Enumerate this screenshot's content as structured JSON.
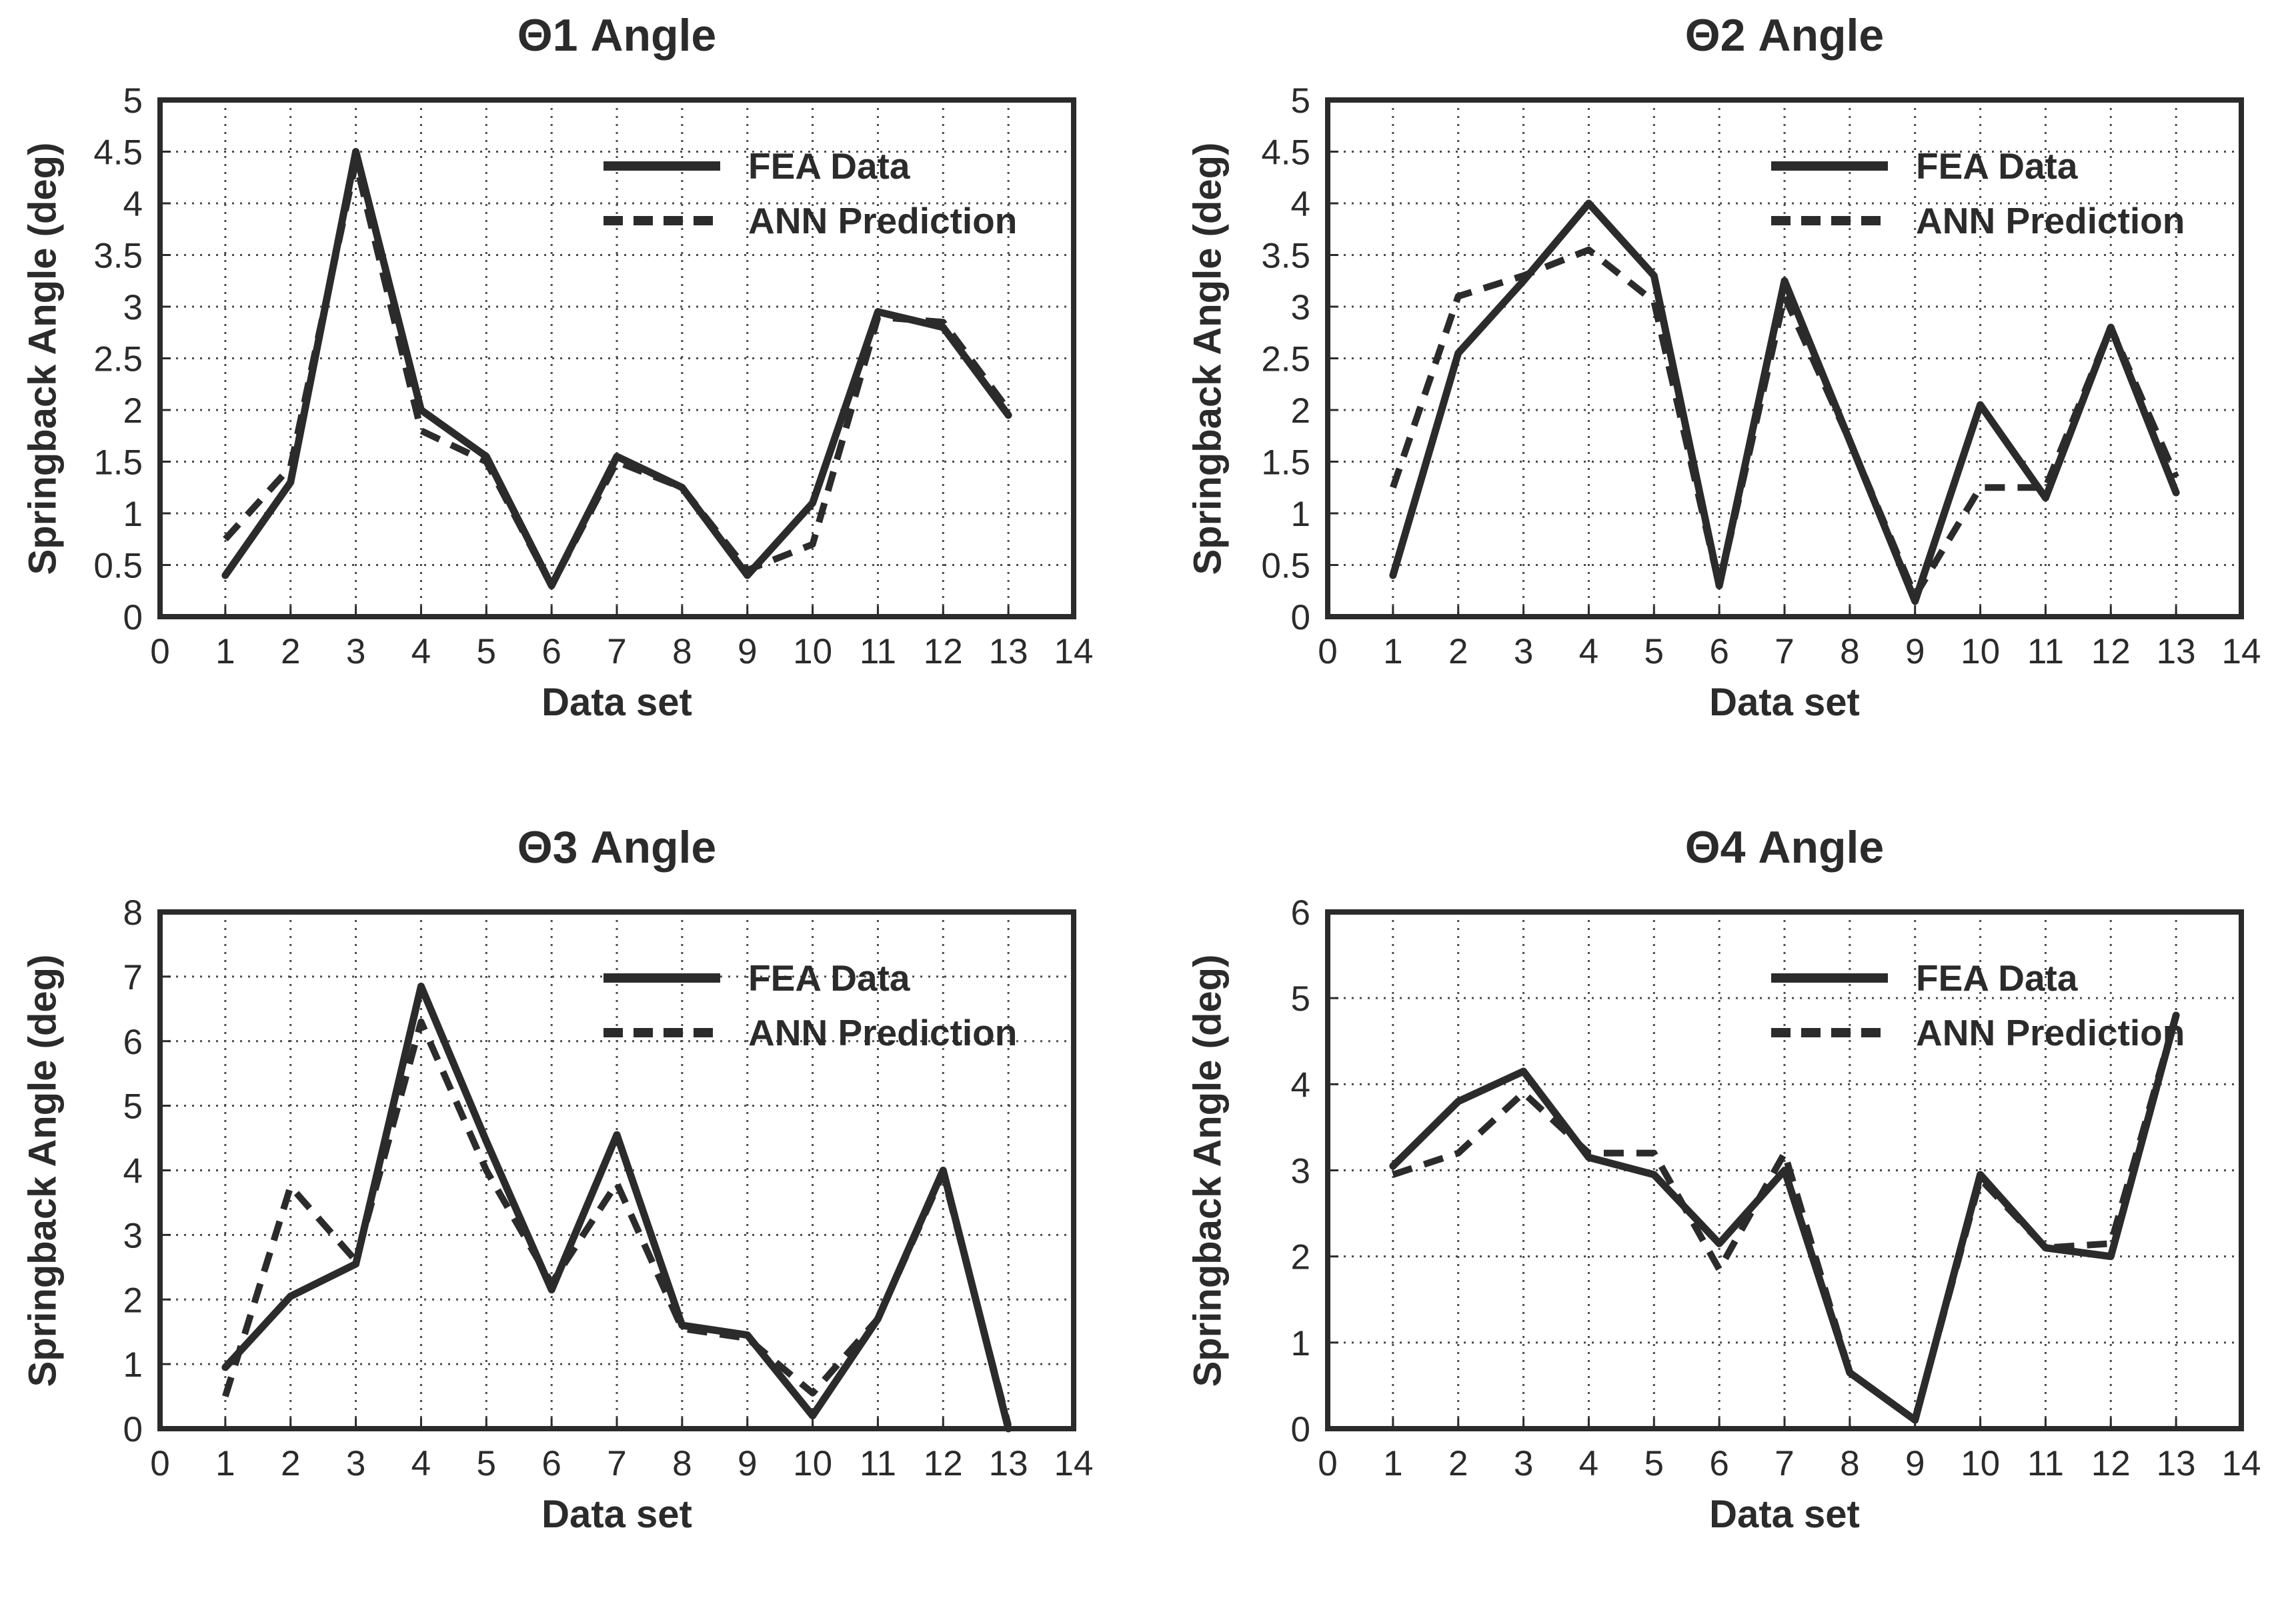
{
  "figure": {
    "type": "line-chart-grid",
    "rows": 2,
    "cols": 2
  },
  "colors": {
    "line": "#2b2b2b",
    "grid": "#4a4a4a",
    "text": "#2b2b2b",
    "background": "#ffffff"
  },
  "chart_data": [
    {
      "type": "line",
      "title": "Θ1 Angle",
      "xlabel": "Data set",
      "ylabel": "Springback Angle (deg)",
      "xlim": [
        0,
        14
      ],
      "ylim": [
        0,
        5
      ],
      "grid": true,
      "legend_position": "upper right",
      "x_ticks": [
        0,
        1,
        2,
        3,
        4,
        5,
        6,
        7,
        8,
        9,
        10,
        11,
        12,
        13,
        14
      ],
      "x_tick_labels": [
        "0",
        "1",
        "2",
        "3",
        "4",
        "5",
        "6",
        "7",
        "8",
        "9",
        "10",
        "11",
        "12",
        "13",
        "14"
      ],
      "y_ticks": [
        0,
        0.5,
        1,
        1.5,
        2,
        2.5,
        3,
        3.5,
        4,
        4.5,
        5
      ],
      "y_tick_labels": [
        "0",
        "0.5",
        "1",
        "1.5",
        "2",
        "2.5",
        "3",
        "3.5",
        "4",
        "4.5",
        "5"
      ],
      "x": [
        1,
        2,
        3,
        4,
        5,
        6,
        7,
        8,
        9,
        10,
        11,
        12,
        13
      ],
      "series": [
        {
          "name": "FEA Data",
          "line_style": "solid",
          "values": [
            0.4,
            1.3,
            4.5,
            2.0,
            1.55,
            0.3,
            1.55,
            1.25,
            0.4,
            1.1,
            2.95,
            2.8,
            1.95
          ]
        },
        {
          "name": "ANN Prediction",
          "line_style": "dashed",
          "values": [
            0.75,
            1.45,
            4.4,
            1.8,
            1.5,
            0.3,
            1.5,
            1.25,
            0.45,
            0.7,
            2.9,
            2.85,
            2.0
          ]
        }
      ]
    },
    {
      "type": "line",
      "title": "Θ2 Angle",
      "xlabel": "Data set",
      "ylabel": "Springback Angle (deg)",
      "xlim": [
        0,
        14
      ],
      "ylim": [
        0,
        5
      ],
      "grid": true,
      "legend_position": "upper right",
      "x_ticks": [
        0,
        1,
        2,
        3,
        4,
        5,
        6,
        7,
        8,
        9,
        10,
        11,
        12,
        13,
        14
      ],
      "x_tick_labels": [
        "0",
        "1",
        "2",
        "3",
        "4",
        "5",
        "6",
        "7",
        "8",
        "9",
        "10",
        "11",
        "12",
        "13",
        "14"
      ],
      "y_ticks": [
        0,
        0.5,
        1,
        1.5,
        2,
        2.5,
        3,
        3.5,
        4,
        4.5,
        5
      ],
      "y_tick_labels": [
        "0",
        "0.5",
        "1",
        "1.5",
        "2",
        "2.5",
        "3",
        "3.5",
        "4",
        "4.5",
        "5"
      ],
      "x": [
        1,
        2,
        3,
        4,
        5,
        6,
        7,
        8,
        9,
        10,
        11,
        12,
        13
      ],
      "series": [
        {
          "name": "FEA Data",
          "line_style": "solid",
          "values": [
            0.4,
            2.55,
            3.25,
            4.0,
            3.3,
            0.3,
            3.25,
            1.7,
            0.15,
            2.05,
            1.15,
            2.8,
            1.2
          ]
        },
        {
          "name": "ANN Prediction",
          "line_style": "dashed",
          "values": [
            1.25,
            3.1,
            3.3,
            3.55,
            3.05,
            0.3,
            3.1,
            1.7,
            0.2,
            1.25,
            1.25,
            2.8,
            1.35
          ]
        }
      ]
    },
    {
      "type": "line",
      "title": "Θ3 Angle",
      "xlabel": "Data set",
      "ylabel": "Springback Angle (deg)",
      "xlim": [
        0,
        14
      ],
      "ylim": [
        0,
        8
      ],
      "grid": true,
      "legend_position": "upper right",
      "x_ticks": [
        0,
        1,
        2,
        3,
        4,
        5,
        6,
        7,
        8,
        9,
        10,
        11,
        12,
        13,
        14
      ],
      "x_tick_labels": [
        "0",
        "1",
        "2",
        "3",
        "4",
        "5",
        "6",
        "7",
        "8",
        "9",
        "10",
        "11",
        "12",
        "13",
        "14"
      ],
      "y_ticks": [
        0,
        1,
        2,
        3,
        4,
        5,
        6,
        7,
        8
      ],
      "y_tick_labels": [
        "0",
        "1",
        "2",
        "3",
        "4",
        "5",
        "6",
        "7",
        "8"
      ],
      "x": [
        1,
        2,
        3,
        4,
        5,
        6,
        7,
        8,
        9,
        10,
        11,
        12,
        13
      ],
      "series": [
        {
          "name": "FEA Data",
          "line_style": "solid",
          "values": [
            0.95,
            2.05,
            2.55,
            6.85,
            4.45,
            2.15,
            4.55,
            1.6,
            1.45,
            0.2,
            1.7,
            4.0,
            0.0
          ]
        },
        {
          "name": "ANN Prediction",
          "line_style": "dashed",
          "values": [
            0.5,
            3.75,
            2.6,
            6.3,
            4.0,
            2.25,
            3.8,
            1.55,
            1.4,
            0.55,
            1.7,
            3.95,
            0.05
          ]
        }
      ]
    },
    {
      "type": "line",
      "title": "Θ4 Angle",
      "xlabel": "Data set",
      "ylabel": "Springback Angle (deg)",
      "xlim": [
        0,
        14
      ],
      "ylim": [
        0,
        6
      ],
      "grid": true,
      "legend_position": "upper right",
      "x_ticks": [
        0,
        1,
        2,
        3,
        4,
        5,
        6,
        7,
        8,
        9,
        10,
        11,
        12,
        13,
        14
      ],
      "x_tick_labels": [
        "0",
        "1",
        "2",
        "3",
        "4",
        "5",
        "6",
        "7",
        "8",
        "9",
        "10",
        "11",
        "12",
        "13",
        "14"
      ],
      "y_ticks": [
        0,
        1,
        2,
        3,
        4,
        5,
        6
      ],
      "y_tick_labels": [
        "0",
        "1",
        "2",
        "3",
        "4",
        "5",
        "6"
      ],
      "x": [
        1,
        2,
        3,
        4,
        5,
        6,
        7,
        8,
        9,
        10,
        11,
        12,
        13
      ],
      "series": [
        {
          "name": "FEA Data",
          "line_style": "solid",
          "values": [
            3.05,
            3.8,
            4.15,
            3.15,
            2.95,
            2.15,
            3.0,
            0.65,
            0.1,
            2.95,
            2.1,
            2.0,
            4.8
          ]
        },
        {
          "name": "ANN Prediction",
          "line_style": "dashed",
          "values": [
            2.95,
            3.2,
            3.9,
            3.2,
            3.2,
            1.85,
            3.2,
            0.65,
            0.1,
            2.9,
            2.1,
            2.15,
            4.8
          ]
        }
      ]
    }
  ]
}
